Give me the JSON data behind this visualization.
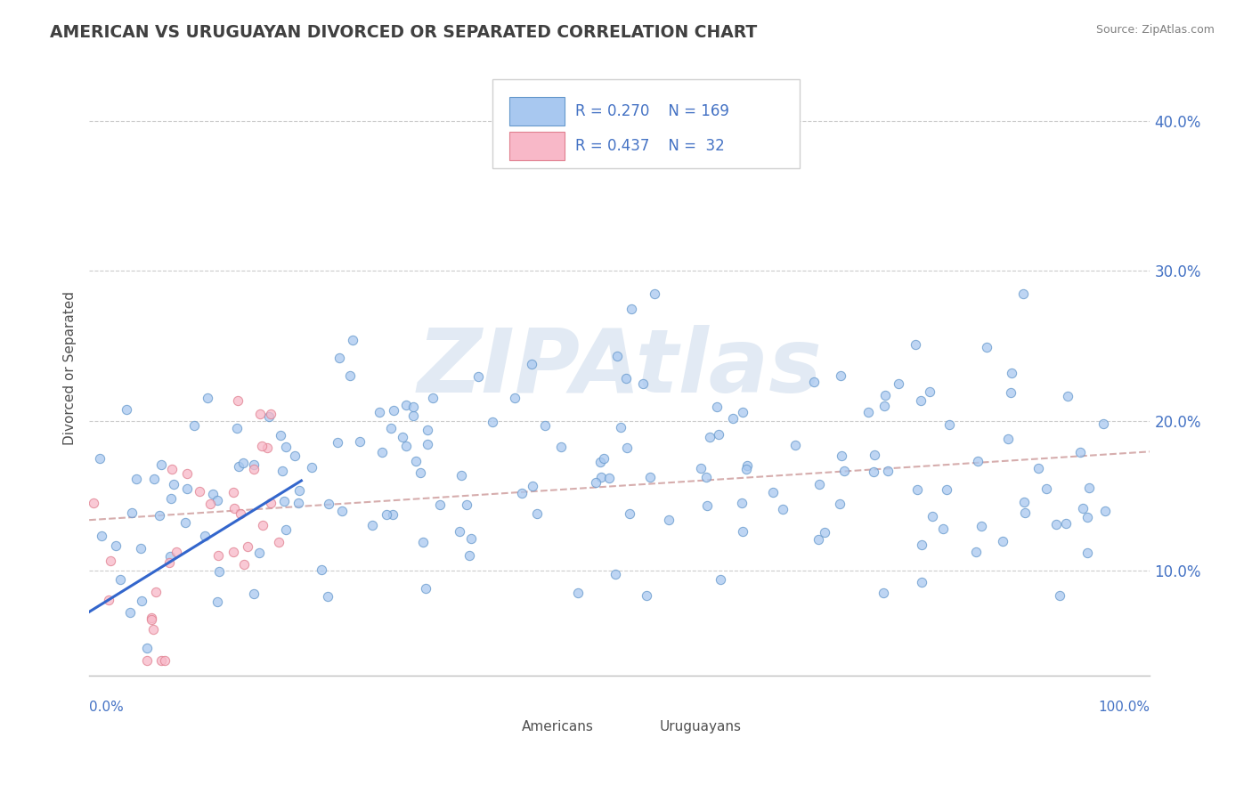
{
  "title": "AMERICAN VS URUGUAYAN DIVORCED OR SEPARATED CORRELATION CHART",
  "source": "Source: ZipAtlas.com",
  "ylabel": "Divorced or Separated",
  "legend_label1": "Americans",
  "legend_label2": "Uruguayans",
  "R1": 0.27,
  "N1": 169,
  "R2": 0.437,
  "N2": 32,
  "xlim": [
    0.0,
    1.0
  ],
  "ylim": [
    0.03,
    0.44
  ],
  "yticks": [
    0.1,
    0.2,
    0.3,
    0.4
  ],
  "ytick_labels": [
    "10.0%",
    "20.0%",
    "30.0%",
    "40.0%"
  ],
  "american_color": "#a8c8f0",
  "american_edge": "#6699cc",
  "uruguayan_color": "#f8b8c8",
  "uruguayan_edge": "#e08090",
  "trend_american_color": "#cc9999",
  "trend_uruguayan_color": "#3366cc",
  "watermark": "ZIPAtlas",
  "background_color": "#ffffff",
  "title_color": "#404040",
  "legend_R_color": "#4472c4",
  "axis_label_color": "#4472c4",
  "grid_color": "#cccccc"
}
